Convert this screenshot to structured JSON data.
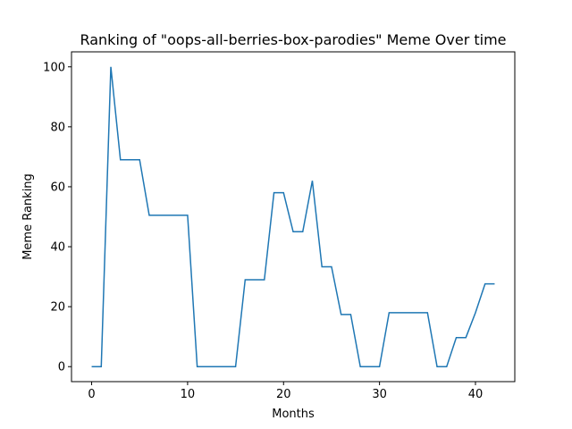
{
  "chart_data": {
    "type": "line",
    "title": "Ranking of \"oops-all-berries-box-parodies\" Meme Over time",
    "xlabel": "Months",
    "ylabel": "Meme Ranking",
    "xlim": [
      -2.1,
      44.1
    ],
    "ylim": [
      -5,
      105
    ],
    "xticks": [
      0,
      10,
      20,
      30,
      40
    ],
    "yticks": [
      0,
      20,
      40,
      60,
      80,
      100
    ],
    "grid": false,
    "line_color": "#1f77b4",
    "x": [
      0,
      1,
      2,
      3,
      4,
      5,
      6,
      7,
      8,
      9,
      10,
      11,
      12,
      13,
      14,
      15,
      16,
      17,
      18,
      19,
      20,
      21,
      22,
      23,
      24,
      25,
      26,
      27,
      28,
      29,
      30,
      31,
      32,
      33,
      34,
      35,
      36,
      37,
      38,
      39,
      40,
      41,
      42
    ],
    "y": [
      0,
      0,
      100,
      69,
      69,
      69,
      50.5,
      50.5,
      50.5,
      50.5,
      50.5,
      0,
      0,
      0,
      0,
      0,
      29,
      29,
      29,
      58,
      58,
      45,
      45,
      62,
      33.3,
      33.3,
      17.4,
      17.4,
      0,
      0,
      0,
      18,
      18,
      18,
      18,
      18,
      0,
      0,
      9.7,
      9.7,
      18,
      27.6,
      27.6
    ]
  }
}
